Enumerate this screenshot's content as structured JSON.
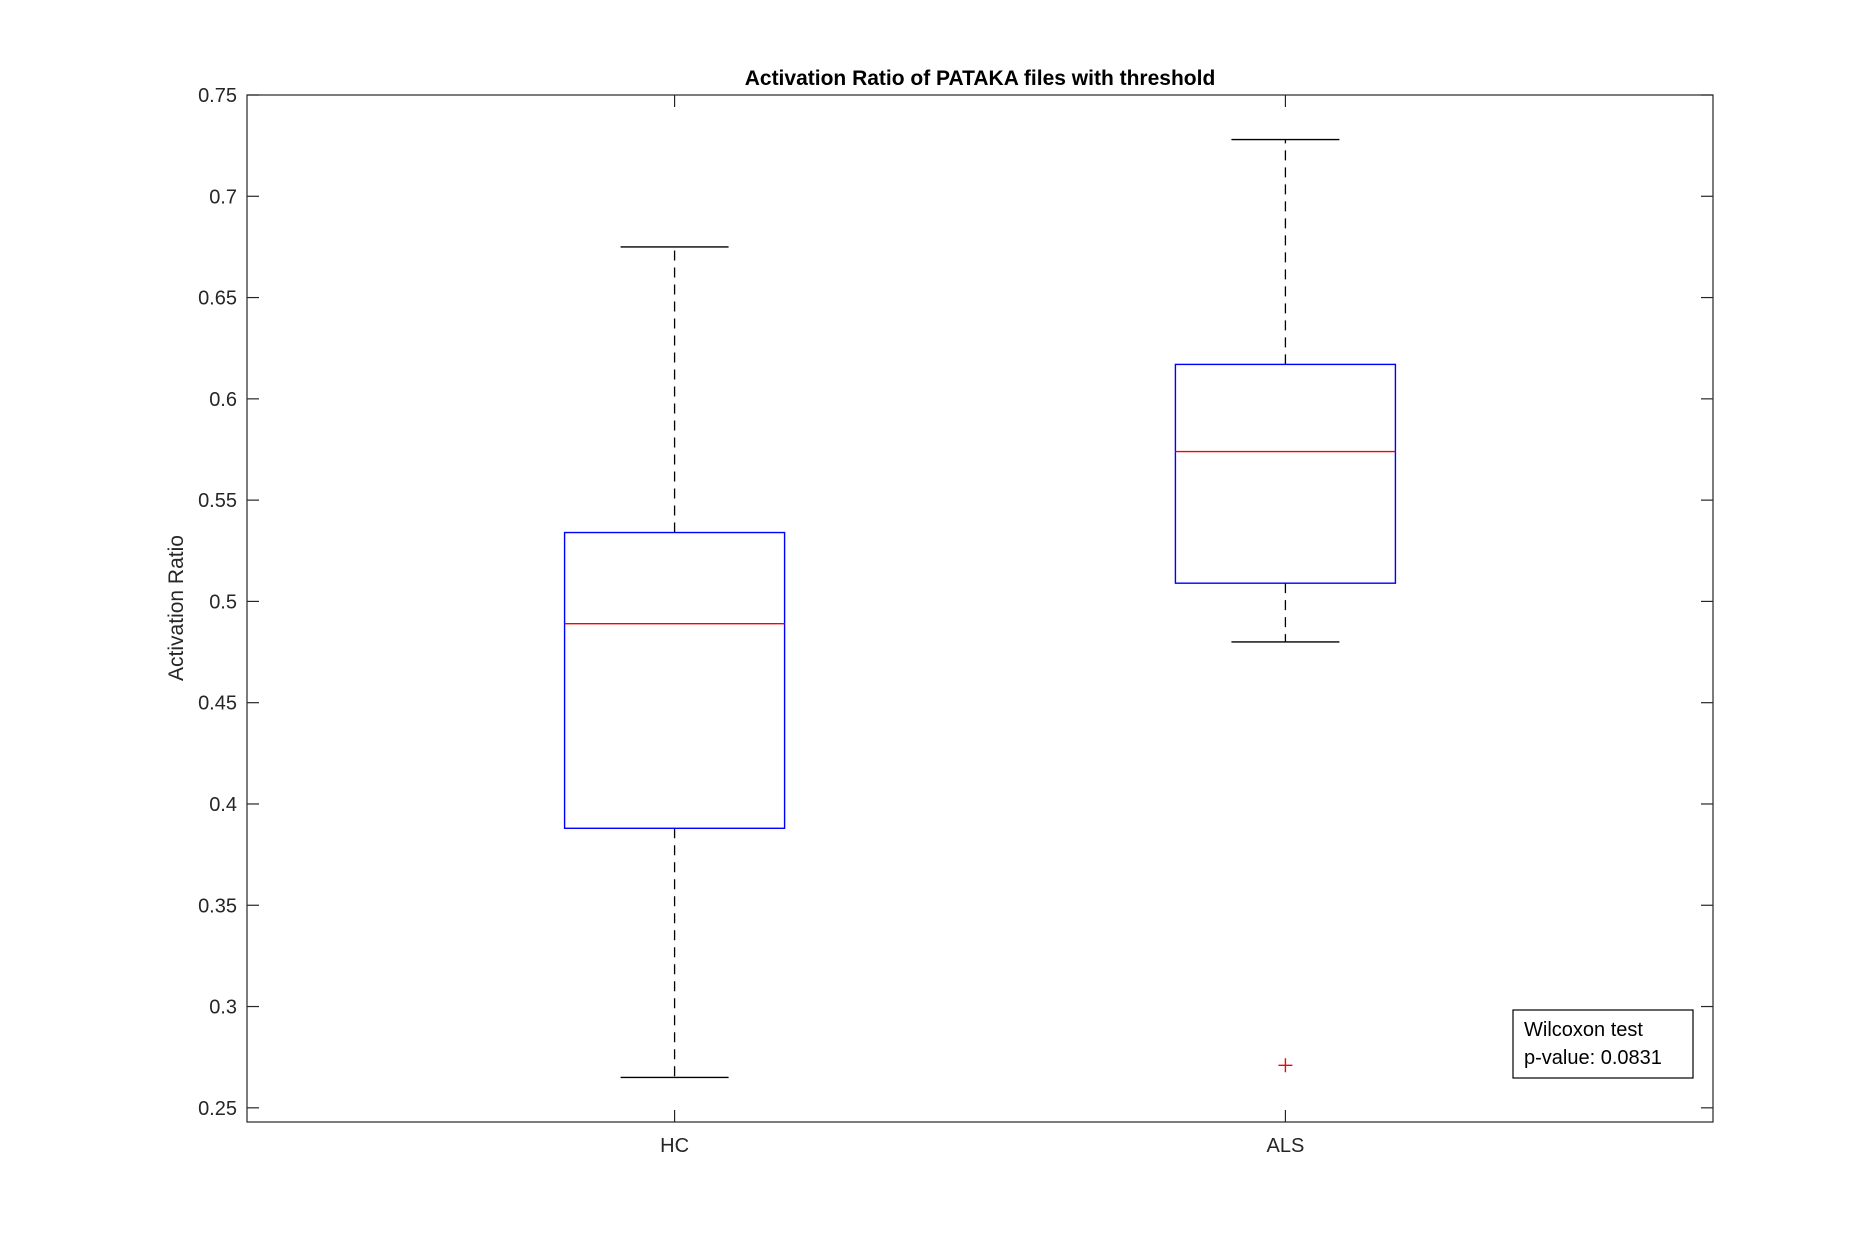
{
  "chart_data": {
    "type": "box",
    "title": "Activation Ratio of PATAKA files with threshold",
    "xlabel": "",
    "ylabel": "Activation Ratio",
    "ylim": [
      0.243,
      0.75
    ],
    "yticks": [
      "0.25",
      "0.3",
      "0.35",
      "0.4",
      "0.45",
      "0.5",
      "0.55",
      "0.6",
      "0.65",
      "0.7",
      "0.75"
    ],
    "categories": [
      "HC",
      "ALS"
    ],
    "boxes": [
      {
        "category": "HC",
        "whisker_low": 0.265,
        "q1": 0.388,
        "median": 0.489,
        "q3": 0.534,
        "whisker_high": 0.675,
        "outliers": []
      },
      {
        "category": "ALS",
        "whisker_low": 0.48,
        "q1": 0.509,
        "median": 0.574,
        "q3": 0.617,
        "whisker_high": 0.728,
        "outliers": [
          0.271
        ]
      }
    ],
    "colors": {
      "box": "#0000ff",
      "median": "#ff0000",
      "whisker": "#000000",
      "outlier": "#ff0000",
      "axes": "#262626"
    },
    "annotation": {
      "line1": "Wilcoxon test",
      "line2": "p-value: 0.0831",
      "placement": "bottom-right"
    },
    "grid": false,
    "legend": "none"
  }
}
